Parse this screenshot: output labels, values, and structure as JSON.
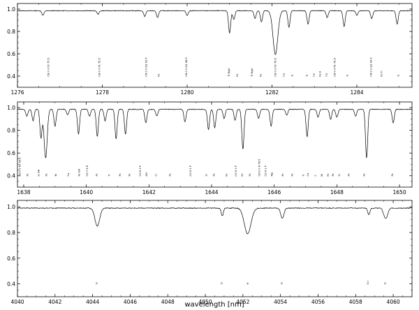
{
  "figure": {
    "xlabel": "wavelength [nm]"
  },
  "chart_data": [
    {
      "type": "line",
      "title": "",
      "xlabel": "",
      "ylabel": "",
      "xlim": [
        1276,
        1285.3
      ],
      "ylim": [
        0.3,
        1.05
      ],
      "x_ticks": [
        1276,
        1278,
        1280,
        1282,
        1284
      ],
      "y_ticks": [
        0.4,
        0.6,
        0.8,
        1.0
      ],
      "x_tick_labels": [
        "1276",
        "1278",
        "1280",
        "1282",
        "1284"
      ],
      "y_tick_labels": [
        "0.4",
        "0.6",
        "0.8",
        "1.0"
      ],
      "continuum": 0.985,
      "lines": [
        {
          "x": 1276.6,
          "depth": 0.04
        },
        {
          "x": 1277.9,
          "depth": 0.03
        },
        {
          "x": 1279.0,
          "depth": 0.05
        },
        {
          "x": 1279.3,
          "depth": 0.06
        },
        {
          "x": 1280.0,
          "depth": 0.04
        },
        {
          "x": 1281.0,
          "depth": 0.2
        },
        {
          "x": 1281.1,
          "depth": 0.08
        },
        {
          "x": 1281.6,
          "depth": 0.07
        },
        {
          "x": 1281.75,
          "depth": 0.1
        },
        {
          "x": 1282.08,
          "depth": 0.39,
          "width": 0.08
        },
        {
          "x": 1282.4,
          "depth": 0.15
        },
        {
          "x": 1282.85,
          "depth": 0.12
        },
        {
          "x": 1283.3,
          "depth": 0.06
        },
        {
          "x": 1283.7,
          "depth": 0.14
        },
        {
          "x": 1284.0,
          "depth": 0.04
        },
        {
          "x": 1284.35,
          "depth": 0.07
        },
        {
          "x": 1284.95,
          "depth": 0.12
        }
      ],
      "labels": [
        {
          "x": 1276.75,
          "text": "CN 0 0 P2 75.5"
        },
        {
          "x": 1277.95,
          "text": "CN 0 0 P1 75.5"
        },
        {
          "x": 1279.05,
          "text": "CN 0 0 Q2 63.5"
        },
        {
          "x": 1279.35,
          "text": "Fe"
        },
        {
          "x": 1280.0,
          "text": "CN 0 0 Q2 48.5"
        },
        {
          "x": 1281.0,
          "text": "Ti MgII"
        },
        {
          "x": 1281.2,
          "text": "Fe"
        },
        {
          "x": 1281.55,
          "text": "Ti MgII"
        },
        {
          "x": 1281.75,
          "text": "Fe"
        },
        {
          "x": 1282.1,
          "text": "CN 0 0 P2 76.5"
        },
        {
          "x": 1282.3,
          "text": "Ca"
        },
        {
          "x": 1282.5,
          "text": "Ti"
        },
        {
          "x": 1282.85,
          "text": "Ti"
        },
        {
          "x": 1283.0,
          "text": "Ca"
        },
        {
          "x": 1283.15,
          "text": "Fe H"
        },
        {
          "x": 1283.3,
          "text": "Ca"
        },
        {
          "x": 1283.5,
          "text": "CN 0 0 P1 76.5"
        },
        {
          "x": 1283.8,
          "text": "Ti"
        },
        {
          "x": 1284.35,
          "text": "CN 0 0 Q2 49.5"
        },
        {
          "x": 1284.6,
          "text": "Fe Ti"
        },
        {
          "x": 1285.0,
          "text": "Ti"
        }
      ]
    },
    {
      "type": "line",
      "title": "",
      "xlabel": "",
      "ylabel": "",
      "xlim": [
        1637.8,
        1650.4
      ],
      "ylim": [
        0.3,
        1.05
      ],
      "x_ticks": [
        1638,
        1640,
        1642,
        1644,
        1646,
        1648,
        1650
      ],
      "y_ticks": [
        0.4,
        0.6,
        0.8,
        1.0
      ],
      "x_tick_labels": [
        "1638",
        "1640",
        "1642",
        "1644",
        "1646",
        "1648",
        "1650"
      ],
      "y_tick_labels": [
        "0.4",
        "0.6",
        "0.8",
        "1.0"
      ],
      "continuum": 0.985,
      "lines": [
        {
          "x": 1638.1,
          "depth": 0.06
        },
        {
          "x": 1638.3,
          "depth": 0.1
        },
        {
          "x": 1638.55,
          "depth": 0.25
        },
        {
          "x": 1638.7,
          "depth": 0.43,
          "width": 0.07
        },
        {
          "x": 1639.0,
          "depth": 0.15
        },
        {
          "x": 1639.4,
          "depth": 0.05
        },
        {
          "x": 1639.75,
          "depth": 0.22
        },
        {
          "x": 1640.1,
          "depth": 0.06
        },
        {
          "x": 1640.35,
          "depth": 0.24
        },
        {
          "x": 1640.6,
          "depth": 0.1
        },
        {
          "x": 1640.95,
          "depth": 0.26
        },
        {
          "x": 1641.25,
          "depth": 0.22
        },
        {
          "x": 1641.9,
          "depth": 0.12
        },
        {
          "x": 1642.25,
          "depth": 0.06
        },
        {
          "x": 1643.15,
          "depth": 0.11
        },
        {
          "x": 1643.9,
          "depth": 0.18
        },
        {
          "x": 1644.1,
          "depth": 0.16
        },
        {
          "x": 1644.4,
          "depth": 0.08
        },
        {
          "x": 1644.75,
          "depth": 0.1
        },
        {
          "x": 1645.0,
          "depth": 0.35,
          "width": 0.05
        },
        {
          "x": 1645.5,
          "depth": 0.08
        },
        {
          "x": 1645.9,
          "depth": 0.15
        },
        {
          "x": 1646.4,
          "depth": 0.05
        },
        {
          "x": 1647.05,
          "depth": 0.24
        },
        {
          "x": 1647.4,
          "depth": 0.07
        },
        {
          "x": 1647.8,
          "depth": 0.09
        },
        {
          "x": 1648.0,
          "depth": 0.07
        },
        {
          "x": 1648.6,
          "depth": 0.06
        },
        {
          "x": 1648.95,
          "depth": 0.43,
          "width": 0.05
        },
        {
          "x": 1649.8,
          "depth": 0.12
        }
      ],
      "labels": [
        {
          "x": 1637.9,
          "text": "CN 0 0 R1 69.5"
        },
        {
          "x": 1638.15,
          "text": "Fe"
        },
        {
          "x": 1638.5,
          "text": "Si OH"
        },
        {
          "x": 1638.75,
          "text": "Fe"
        },
        {
          "x": 1639.05,
          "text": "Ni"
        },
        {
          "x": 1639.45,
          "text": "Ca"
        },
        {
          "x": 1639.8,
          "text": "Fe OH"
        },
        {
          "x": 1640.05,
          "text": "CO 7 4 R"
        },
        {
          "x": 1640.35,
          "text": "Fe"
        },
        {
          "x": 1640.75,
          "text": "Ti"
        },
        {
          "x": 1641.1,
          "text": "Fe"
        },
        {
          "x": 1641.4,
          "text": "Fe"
        },
        {
          "x": 1641.75,
          "text": "CO 6 3 P"
        },
        {
          "x": 1641.95,
          "text": "OH"
        },
        {
          "x": 1642.25,
          "text": "Cr"
        },
        {
          "x": 1642.7,
          "text": "Fe"
        },
        {
          "x": 1643.35,
          "text": "CO 5 2 P"
        },
        {
          "x": 1643.85,
          "text": "Si"
        },
        {
          "x": 1644.1,
          "text": "Fe"
        },
        {
          "x": 1644.5,
          "text": "Fe"
        },
        {
          "x": 1644.8,
          "text": "CO 6 3 P"
        },
        {
          "x": 1645.0,
          "text": "Fe"
        },
        {
          "x": 1645.25,
          "text": "Fe"
        },
        {
          "x": 1645.55,
          "text": "CN 0 0 R 78.5"
        },
        {
          "x": 1645.75,
          "text": "CO 4 1 P"
        },
        {
          "x": 1645.95,
          "text": "Mg"
        },
        {
          "x": 1646.3,
          "text": "Fe"
        },
        {
          "x": 1646.6,
          "text": "Fe"
        },
        {
          "x": 1646.95,
          "text": "Ti"
        },
        {
          "x": 1647.1,
          "text": "Ca"
        },
        {
          "x": 1647.35,
          "text": "C"
        },
        {
          "x": 1647.55,
          "text": "Ni"
        },
        {
          "x": 1647.75,
          "text": "Fe"
        },
        {
          "x": 1647.9,
          "text": "Fe"
        },
        {
          "x": 1648.1,
          "text": "Si"
        },
        {
          "x": 1648.4,
          "text": "Fe"
        },
        {
          "x": 1648.9,
          "text": "Fe"
        },
        {
          "x": 1649.8,
          "text": "Fe"
        }
      ]
    },
    {
      "type": "line",
      "title": "",
      "xlabel": "wavelength [nm]",
      "ylabel": "",
      "xlim": [
        4040,
        4061
      ],
      "ylim": [
        0.3,
        1.05
      ],
      "x_ticks": [
        4040,
        4042,
        4044,
        4046,
        4048,
        4050,
        4052,
        4054,
        4056,
        4058,
        4060
      ],
      "y_ticks": [
        0.4,
        0.6,
        0.8,
        1.0
      ],
      "x_tick_labels": [
        "4040",
        "4042",
        "4044",
        "4046",
        "4048",
        "4050",
        "4052",
        "4054",
        "4056",
        "4058",
        "4060"
      ],
      "y_tick_labels": [
        "0.4",
        "0.6",
        "0.8",
        "1.0"
      ],
      "continuum": 0.99,
      "lines": [
        {
          "x": 4044.25,
          "depth": 0.14,
          "width": 0.18
        },
        {
          "x": 4050.9,
          "depth": 0.06
        },
        {
          "x": 4052.25,
          "depth": 0.2,
          "width": 0.25
        },
        {
          "x": 4054.1,
          "depth": 0.08,
          "width": 0.12
        },
        {
          "x": 4058.7,
          "depth": 0.05
        },
        {
          "x": 4059.6,
          "depth": 0.08,
          "width": 0.15
        }
      ],
      "labels": [
        {
          "x": 4044.25,
          "text": "Si"
        },
        {
          "x": 4050.9,
          "text": "Si"
        },
        {
          "x": 4052.3,
          "text": "H"
        },
        {
          "x": 4054.1,
          "text": "Si"
        },
        {
          "x": 4058.7,
          "text": "Si I"
        },
        {
          "x": 4059.6,
          "text": "Si"
        }
      ]
    }
  ]
}
